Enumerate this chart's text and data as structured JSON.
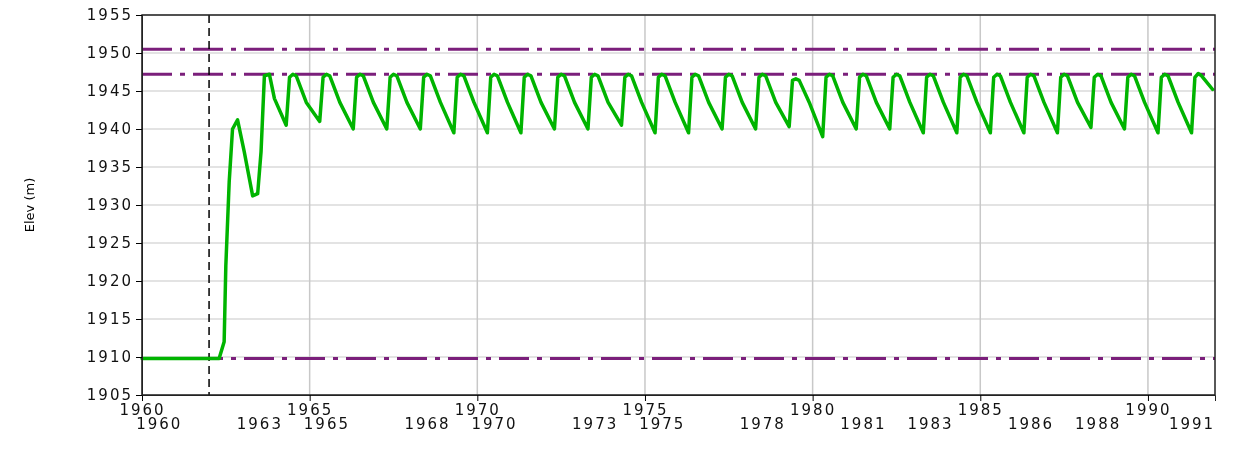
{
  "chart_data": {
    "type": "line",
    "ylabel": "Elev (m)",
    "xlim": [
      1960,
      1992
    ],
    "ylim": [
      1905,
      1955
    ],
    "xticks": [
      1960,
      1965,
      1970,
      1975,
      1980,
      1985,
      1990
    ],
    "yticks": [
      1905,
      1910,
      1915,
      1920,
      1925,
      1930,
      1935,
      1940,
      1945,
      1950,
      1955
    ],
    "x2lim": [
      1960,
      1992
    ],
    "x2ticks": [
      {
        "value": 1960.5,
        "label": "1960"
      },
      {
        "value": 1963.5,
        "label": "1963"
      },
      {
        "value": 1965.5,
        "label": "1965"
      },
      {
        "value": 1968.5,
        "label": "1968"
      },
      {
        "value": 1970.5,
        "label": "1970"
      },
      {
        "value": 1973.5,
        "label": "1973"
      },
      {
        "value": 1975.5,
        "label": "1975"
      },
      {
        "value": 1978.5,
        "label": "1978"
      },
      {
        "value": 1981.5,
        "label": "1981"
      },
      {
        "value": 1983.5,
        "label": "1983"
      },
      {
        "value": 1986.5,
        "label": "1986"
      },
      {
        "value": 1988.5,
        "label": "1988"
      },
      {
        "value": 1991.3,
        "label": "1991"
      }
    ],
    "grid": true,
    "line_style": "solid",
    "ref_lines": [
      {
        "axis": "y",
        "value": 1950.5,
        "color": "#7b1f7b",
        "line_style": "dashdot"
      },
      {
        "axis": "y",
        "value": 1947.2,
        "color": "#7b1f7b",
        "line_style": "dashdot"
      },
      {
        "axis": "y",
        "value": 1909.8,
        "color": "#7b1f7b",
        "line_style": "dashdot"
      },
      {
        "axis": "x",
        "value": 1962,
        "color": "#000000",
        "line_style": "dashed"
      }
    ],
    "series": [
      {
        "color": "#00b400",
        "x": [
          1960,
          1962.3,
          1962.45,
          1962.5,
          1962.6,
          1962.7,
          1962.85,
          1963.05,
          1963.3,
          1963.45,
          1963.55,
          1963.65,
          1963.8,
          1963.95,
          1964.3,
          1964.4,
          1964.5,
          1964.6,
          1964.9,
          1965.3,
          1965.4,
          1965.5,
          1965.6,
          1965.9,
          1966.3,
          1966.4,
          1966.5,
          1966.6,
          1966.9,
          1967.3,
          1967.4,
          1967.5,
          1967.6,
          1967.9,
          1968.3,
          1968.4,
          1968.5,
          1968.6,
          1968.9,
          1969.3,
          1969.4,
          1969.5,
          1969.6,
          1969.9,
          1970.3,
          1970.4,
          1970.5,
          1970.6,
          1970.9,
          1971.3,
          1971.4,
          1971.5,
          1971.6,
          1971.9,
          1972.3,
          1972.4,
          1972.5,
          1972.6,
          1972.9,
          1973.3,
          1973.4,
          1973.5,
          1973.6,
          1973.9,
          1974.3,
          1974.4,
          1974.5,
          1974.6,
          1974.9,
          1975.3,
          1975.4,
          1975.5,
          1975.6,
          1975.9,
          1976.3,
          1976.4,
          1976.5,
          1976.6,
          1976.9,
          1977.3,
          1977.4,
          1977.5,
          1977.6,
          1977.9,
          1978.3,
          1978.4,
          1978.5,
          1978.6,
          1978.9,
          1979.3,
          1979.4,
          1979.5,
          1979.6,
          1979.9,
          1980.3,
          1980.4,
          1980.5,
          1980.6,
          1980.9,
          1981.3,
          1981.4,
          1981.5,
          1981.6,
          1981.9,
          1982.3,
          1982.4,
          1982.5,
          1982.6,
          1982.9,
          1983.3,
          1983.4,
          1983.5,
          1983.6,
          1983.9,
          1984.3,
          1984.4,
          1984.5,
          1984.6,
          1984.9,
          1985.3,
          1985.4,
          1985.5,
          1985.6,
          1985.9,
          1986.3,
          1986.4,
          1986.5,
          1986.6,
          1986.9,
          1987.3,
          1987.4,
          1987.5,
          1987.6,
          1987.9,
          1988.3,
          1988.4,
          1988.5,
          1988.6,
          1988.9,
          1989.3,
          1989.4,
          1989.5,
          1989.6,
          1989.9,
          1990.3,
          1990.4,
          1990.5,
          1990.6,
          1990.9,
          1991.3,
          1991.4,
          1991.5,
          1991.6,
          1991.93
        ],
        "values": [
          1909.8,
          1909.8,
          1912,
          1922,
          1933,
          1940,
          1941.2,
          1937,
          1931.2,
          1931.5,
          1937,
          1947,
          1947.2,
          1944,
          1940.5,
          1946.8,
          1947.2,
          1947,
          1943.5,
          1941,
          1946.8,
          1947.2,
          1947,
          1943.5,
          1940,
          1946.8,
          1947.2,
          1947,
          1943.5,
          1940,
          1946.8,
          1947.2,
          1947,
          1943.5,
          1940,
          1946.8,
          1947.2,
          1947,
          1943.5,
          1939.5,
          1946.8,
          1947.2,
          1947,
          1943.5,
          1939.5,
          1946.8,
          1947.2,
          1947,
          1943.5,
          1939.5,
          1946.8,
          1947.2,
          1947,
          1943.5,
          1940,
          1946.8,
          1947.2,
          1947,
          1943.5,
          1940,
          1946.8,
          1947.2,
          1947,
          1943.5,
          1940.5,
          1946.8,
          1947.2,
          1947,
          1943.5,
          1939.5,
          1946.8,
          1947.2,
          1947,
          1943.5,
          1939.5,
          1946.8,
          1947.2,
          1947,
          1943.5,
          1940,
          1946.8,
          1947.2,
          1947,
          1943.5,
          1940,
          1946.8,
          1947.2,
          1947,
          1943.5,
          1940.3,
          1946.4,
          1946.6,
          1946.4,
          1943.5,
          1939,
          1946.8,
          1947.2,
          1947,
          1943.5,
          1940,
          1946.8,
          1947.2,
          1947,
          1943.5,
          1940,
          1946.8,
          1947.2,
          1947,
          1943.5,
          1939.5,
          1946.8,
          1947.2,
          1947,
          1943.5,
          1939.5,
          1946.8,
          1947.2,
          1947,
          1943.5,
          1939.5,
          1946.8,
          1947.2,
          1947,
          1943.5,
          1939.5,
          1946.8,
          1947.2,
          1947,
          1943.5,
          1939.5,
          1946.8,
          1947.2,
          1947,
          1943.5,
          1940.2,
          1946.8,
          1947.2,
          1947,
          1943.5,
          1940,
          1946.8,
          1947.2,
          1947,
          1943.5,
          1939.5,
          1946.8,
          1947.2,
          1947,
          1943.5,
          1939.5,
          1946.8,
          1947.3,
          1947,
          1945.2
        ]
      }
    ]
  }
}
